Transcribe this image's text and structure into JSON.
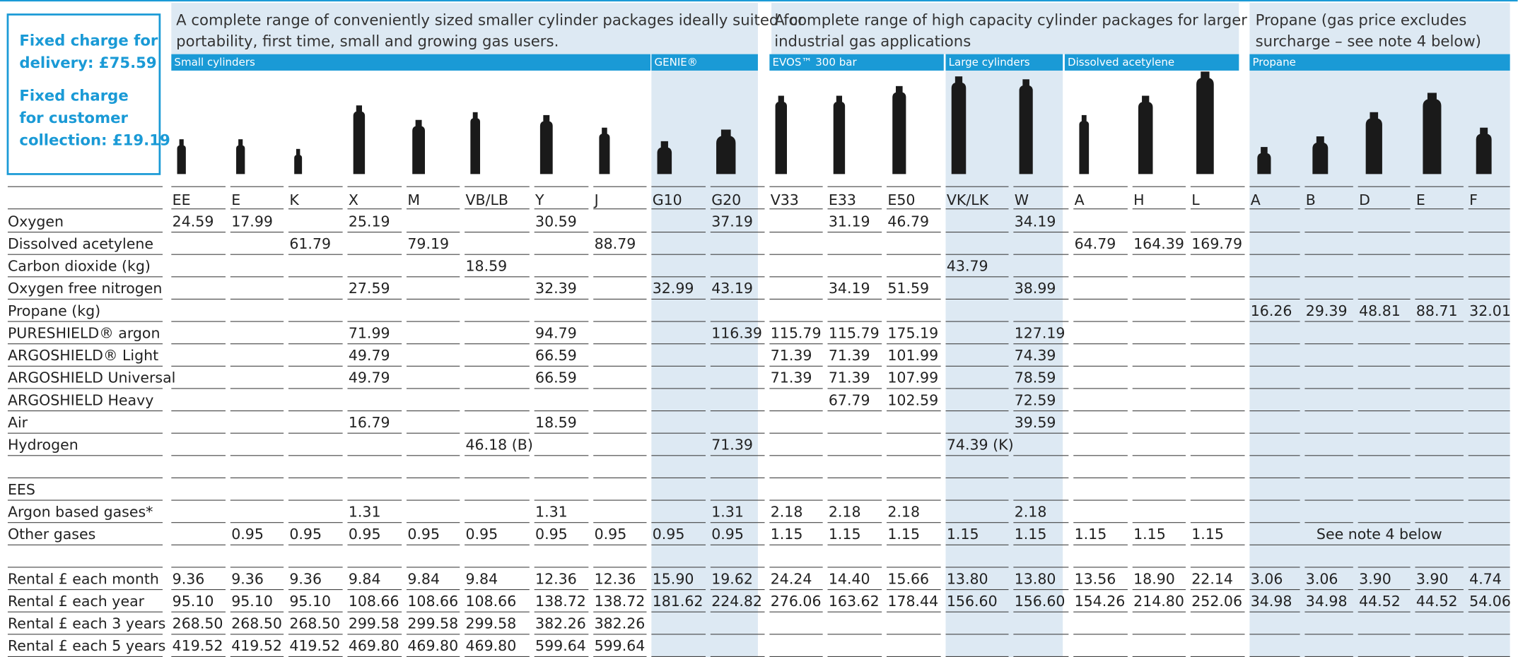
{
  "fixed_charges": [
    {
      "lines": [
        "Fixed charge for",
        "delivery: £75.59"
      ]
    },
    {
      "lines": [
        "Fixed charge",
        "for customer",
        "collection: £19.19"
      ]
    }
  ],
  "group_descriptions": [
    {
      "lines": [
        "A complete range of conveniently sized smaller cylinder packages ideally suited for",
        "portability, first time, small and growing gas users."
      ]
    },
    {
      "lines": [
        "A complete range of high capacity cylinder packages for larger",
        "industrial gas applications"
      ]
    },
    {
      "lines": [
        "Propane (gas price excludes",
        "surcharge – see note 4 below)"
      ]
    }
  ],
  "subheaders": [
    "Small cylinders",
    "GENIE®",
    "EVOS™ 300 bar",
    "Large cylinders",
    "Dissolved acetylene",
    "Propane"
  ],
  "columns": [
    "EE",
    "E",
    "K",
    "X",
    "M",
    "VB/LB",
    "Y",
    "J",
    "G10",
    "G20",
    "V33",
    "E33",
    "E50",
    "VK/LK",
    "W",
    "A",
    "H",
    "L",
    "A",
    "B",
    "D",
    "E",
    "F"
  ],
  "rows": [
    {
      "label": "Oxygen",
      "cells": [
        "24.59",
        "17.99",
        null,
        "25.19",
        null,
        null,
        "30.59",
        null,
        null,
        "37.19",
        null,
        "31.19",
        "46.79",
        null,
        "34.19",
        null,
        null,
        null,
        null,
        null,
        null,
        null,
        null
      ]
    },
    {
      "label": "Dissolved acetylene",
      "cells": [
        null,
        null,
        "61.79",
        null,
        "79.19",
        null,
        null,
        "88.79",
        null,
        null,
        null,
        null,
        null,
        null,
        null,
        "64.79",
        "164.39",
        "169.79",
        null,
        null,
        null,
        null,
        null
      ]
    },
    {
      "label": "Carbon dioxide (kg)",
      "cells": [
        null,
        null,
        null,
        null,
        null,
        "18.59",
        null,
        null,
        null,
        null,
        null,
        null,
        null,
        "43.79",
        null,
        null,
        null,
        null,
        null,
        null,
        null,
        null,
        null
      ]
    },
    {
      "label": "Oxygen free nitrogen",
      "cells": [
        null,
        null,
        null,
        "27.59",
        null,
        null,
        "32.39",
        null,
        "32.99",
        "43.19",
        null,
        "34.19",
        "51.59",
        null,
        "38.99",
        null,
        null,
        null,
        null,
        null,
        null,
        null,
        null
      ]
    },
    {
      "label": "Propane (kg)",
      "cells": [
        null,
        null,
        null,
        null,
        null,
        null,
        null,
        null,
        null,
        null,
        null,
        null,
        null,
        null,
        null,
        null,
        null,
        null,
        "16.26",
        "29.39",
        "48.81",
        "88.71",
        "32.01"
      ]
    },
    {
      "label": "PURESHIELD® argon",
      "cells": [
        null,
        null,
        null,
        "71.99",
        null,
        null,
        "94.79",
        null,
        null,
        "116.39",
        "115.79",
        "115.79",
        "175.19",
        null,
        "127.19",
        null,
        null,
        null,
        null,
        null,
        null,
        null,
        null
      ]
    },
    {
      "label": "ARGOSHIELD® Light",
      "cells": [
        null,
        null,
        null,
        "49.79",
        null,
        null,
        "66.59",
        null,
        null,
        null,
        "71.39",
        "71.39",
        "101.99",
        null,
        "74.39",
        null,
        null,
        null,
        null,
        null,
        null,
        null,
        null
      ]
    },
    {
      "label": "ARGOSHIELD Universal",
      "cells": [
        null,
        null,
        null,
        "49.79",
        null,
        null,
        "66.59",
        null,
        null,
        null,
        "71.39",
        "71.39",
        "107.99",
        null,
        "78.59",
        null,
        null,
        null,
        null,
        null,
        null,
        null,
        null
      ]
    },
    {
      "label": "ARGOSHIELD Heavy",
      "cells": [
        null,
        null,
        null,
        null,
        null,
        null,
        null,
        null,
        null,
        null,
        null,
        "67.79",
        "102.59",
        null,
        "72.59",
        null,
        null,
        null,
        null,
        null,
        null,
        null,
        null
      ]
    },
    {
      "label": "Air",
      "cells": [
        null,
        null,
        null,
        "16.79",
        null,
        null,
        "18.59",
        null,
        null,
        null,
        null,
        null,
        null,
        null,
        "39.59",
        null,
        null,
        null,
        null,
        null,
        null,
        null,
        null
      ]
    },
    {
      "label": "Hydrogen",
      "cells": [
        null,
        null,
        null,
        null,
        null,
        "46.18 (B)",
        null,
        null,
        null,
        "71.39",
        null,
        null,
        null,
        "74.39 (K)",
        null,
        null,
        null,
        null,
        null,
        null,
        null,
        null,
        null
      ]
    },
    {
      "label": "EES"
    },
    {
      "label": "Argon based gases*",
      "cells": [
        null,
        null,
        null,
        "1.31",
        null,
        null,
        "1.31",
        null,
        null,
        "1.31",
        "2.18",
        "2.18",
        "2.18",
        null,
        "2.18",
        null,
        null,
        null,
        null,
        null,
        null,
        null,
        null
      ]
    },
    {
      "label": "Other gases",
      "cells": [
        null,
        "0.95",
        "0.95",
        "0.95",
        "0.95",
        "0.95",
        "0.95",
        "0.95",
        "0.95",
        "0.95",
        "1.15",
        "1.15",
        "1.15",
        "1.15",
        "1.15",
        "1.15",
        "1.15",
        "1.15",
        null,
        null,
        null,
        null,
        null
      ],
      "note": "See note 4 below"
    },
    {
      "label": "Rental £ each month",
      "cells": [
        "9.36",
        "9.36",
        "9.36",
        "9.84",
        "9.84",
        "9.84",
        "12.36",
        "12.36",
        "15.90",
        "19.62",
        "24.24",
        "14.40",
        "15.66",
        "13.80",
        "13.80",
        "13.56",
        "18.90",
        "22.14",
        "3.06",
        "3.06",
        "3.90",
        "3.90",
        "4.74"
      ]
    },
    {
      "label": "Rental £ each year",
      "cells": [
        "95.10",
        "95.10",
        "95.10",
        "108.66",
        "108.66",
        "108.66",
        "138.72",
        "138.72",
        "181.62",
        "224.82",
        "276.06",
        "163.62",
        "178.44",
        "156.60",
        "156.60",
        "154.26",
        "214.80",
        "252.06",
        "34.98",
        "34.98",
        "44.52",
        "44.52",
        "54.06"
      ]
    },
    {
      "label": "Rental £ each 3 years",
      "cells": [
        "268.50",
        "268.50",
        "268.50",
        "299.58",
        "299.58",
        "299.58",
        "382.26",
        "382.26",
        null,
        null,
        null,
        null,
        null,
        null,
        null,
        null,
        null,
        null,
        null,
        null,
        null,
        null,
        null
      ]
    },
    {
      "label": "Rental £ each 5 years",
      "cells": [
        "419.52",
        "419.52",
        "419.52",
        "469.80",
        "469.80",
        "469.80",
        "599.64",
        "599.64",
        null,
        null,
        null,
        null,
        null,
        null,
        null,
        null,
        null,
        null,
        null,
        null,
        null,
        null,
        null
      ]
    }
  ]
}
